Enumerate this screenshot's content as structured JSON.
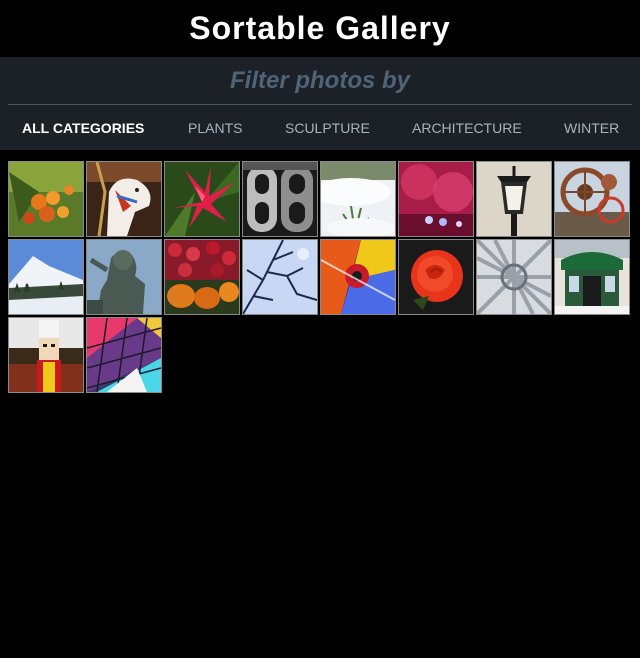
{
  "header": {
    "title": "Sortable Gallery"
  },
  "filter": {
    "heading": "Filter photos by",
    "categories": [
      {
        "label": "All Categories",
        "active": true
      },
      {
        "label": "Plants",
        "active": false
      },
      {
        "label": "Sculpture",
        "active": false
      },
      {
        "label": "Architecture",
        "active": false
      },
      {
        "label": "Winter",
        "active": false
      }
    ]
  },
  "gallery": {
    "photos": [
      {
        "subject": "orange-berries",
        "icon": "berries-photo"
      },
      {
        "subject": "carousel-horse",
        "icon": "carousel-horse-photo"
      },
      {
        "subject": "red-flower",
        "icon": "red-flower-photo"
      },
      {
        "subject": "metal-numbers",
        "icon": "metal-numbers-photo"
      },
      {
        "subject": "snow-plant",
        "icon": "snow-plant-photo"
      },
      {
        "subject": "pink-lights",
        "icon": "pink-lights-photo"
      },
      {
        "subject": "street-lamp",
        "icon": "street-lamp-photo"
      },
      {
        "subject": "metal-sculpture",
        "icon": "metal-sculpture-photo"
      },
      {
        "subject": "snowy-mountain",
        "icon": "snowy-mountain-photo"
      },
      {
        "subject": "statue",
        "icon": "statue-photo"
      },
      {
        "subject": "pumpkins-flowers",
        "icon": "pumpkins-photo"
      },
      {
        "subject": "winter-branches",
        "icon": "winter-branches-photo"
      },
      {
        "subject": "colorful-abstract",
        "icon": "abstract-photo"
      },
      {
        "subject": "red-rose",
        "icon": "red-rose-photo"
      },
      {
        "subject": "steel-structure",
        "icon": "steel-structure-photo"
      },
      {
        "subject": "snowy-storefront",
        "icon": "storefront-photo"
      },
      {
        "subject": "nutcracker",
        "icon": "nutcracker-photo"
      },
      {
        "subject": "glass-ceiling",
        "icon": "glass-ceiling-photo"
      }
    ]
  }
}
